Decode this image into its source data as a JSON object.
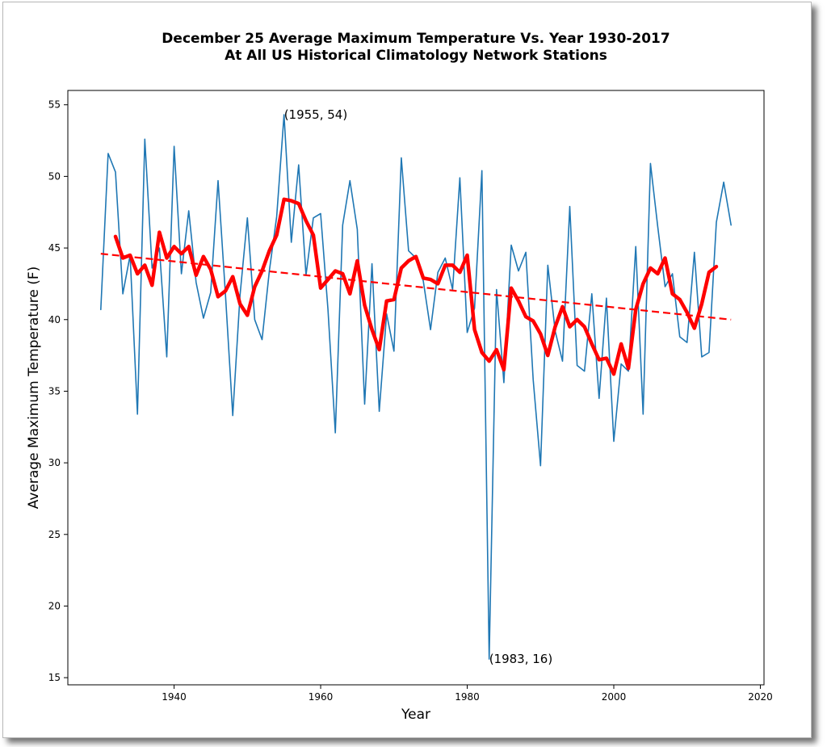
{
  "chart_data": {
    "type": "line",
    "title_line1": "December 25 Average Maximum Temperature Vs. Year 1930-2017",
    "title_line2": "At All US Historical Climatology Network Stations",
    "xlabel": "Year",
    "ylabel": "Average Maximum Temperature (F)",
    "xlim": [
      1925.5,
      2020.5
    ],
    "ylim": [
      14.5,
      56
    ],
    "xticks": [
      1940,
      1960,
      1980,
      2000,
      2020
    ],
    "yticks": [
      15,
      20,
      25,
      30,
      35,
      40,
      45,
      50,
      55
    ],
    "grid": false,
    "series": [
      {
        "style": "thin-line",
        "color": "#1f77b4",
        "x": [
          1930,
          1931,
          1932,
          1933,
          1934,
          1935,
          1936,
          1937,
          1938,
          1939,
          1940,
          1941,
          1942,
          1943,
          1944,
          1945,
          1946,
          1947,
          1948,
          1949,
          1950,
          1951,
          1952,
          1953,
          1954,
          1955,
          1956,
          1957,
          1958,
          1959,
          1960,
          1961,
          1962,
          1963,
          1964,
          1965,
          1966,
          1967,
          1968,
          1969,
          1970,
          1971,
          1972,
          1973,
          1974,
          1975,
          1976,
          1977,
          1978,
          1979,
          1980,
          1981,
          1982,
          1983,
          1984,
          1985,
          1986,
          1987,
          1988,
          1989,
          1990,
          1991,
          1992,
          1993,
          1994,
          1995,
          1996,
          1997,
          1998,
          1999,
          2000,
          2001,
          2002,
          2003,
          2004,
          2005,
          2006,
          2007,
          2008,
          2009,
          2010,
          2011,
          2012,
          2013,
          2014,
          2015,
          2016
        ],
        "y": [
          40.7,
          51.6,
          50.3,
          41.8,
          44.5,
          33.4,
          52.6,
          43.6,
          45.0,
          37.4,
          52.1,
          43.2,
          47.6,
          42.6,
          40.1,
          41.9,
          49.7,
          41.8,
          33.3,
          41.7,
          47.1,
          40.0,
          38.6,
          43.4,
          47.2,
          54.3,
          45.4,
          50.8,
          43.1,
          47.1,
          47.4,
          40.7,
          32.1,
          46.6,
          49.7,
          46.3,
          34.1,
          43.9,
          33.6,
          40.4,
          37.8,
          51.3,
          44.8,
          44.3,
          42.7,
          39.3,
          43.3,
          44.3,
          42.1,
          49.9,
          39.1,
          40.8,
          50.4,
          16.3,
          42.1,
          35.6,
          45.2,
          43.4,
          44.7,
          35.8,
          29.8,
          43.8,
          39.2,
          37.1,
          47.9,
          36.8,
          36.4,
          41.8,
          34.5,
          41.5,
          31.5,
          36.9,
          36.4,
          45.1,
          33.4,
          50.9,
          46.5,
          42.3,
          43.2,
          38.8,
          38.4,
          44.7,
          37.4,
          37.7,
          46.8,
          49.6,
          46.6
        ]
      },
      {
        "style": "thick-moving-average",
        "color": "#ff0000",
        "x": [
          1932,
          1933,
          1934,
          1935,
          1936,
          1937,
          1938,
          1939,
          1940,
          1941,
          1942,
          1943,
          1944,
          1945,
          1946,
          1947,
          1948,
          1949,
          1950,
          1951,
          1952,
          1953,
          1954,
          1955,
          1956,
          1957,
          1958,
          1959,
          1960,
          1961,
          1962,
          1963,
          1964,
          1965,
          1966,
          1967,
          1968,
          1969,
          1970,
          1971,
          1972,
          1973,
          1974,
          1975,
          1976,
          1977,
          1978,
          1979,
          1980,
          1981,
          1982,
          1983,
          1984,
          1985,
          1986,
          1987,
          1988,
          1989,
          1990,
          1991,
          1992,
          1993,
          1994,
          1995,
          1996,
          1997,
          1998,
          1999,
          2000,
          2001,
          2002,
          2003,
          2004,
          2005,
          2006,
          2007,
          2008,
          2009,
          2010,
          2011,
          2012,
          2013,
          2014
        ],
        "y": [
          45.8,
          44.3,
          44.5,
          43.2,
          43.8,
          42.4,
          46.1,
          44.3,
          45.1,
          44.6,
          45.1,
          43.1,
          44.4,
          43.5,
          41.6,
          42.0,
          43.0,
          41.1,
          40.3,
          42.3,
          43.4,
          44.8,
          45.9,
          48.4,
          48.3,
          48.1,
          46.9,
          45.9,
          42.2,
          42.8,
          43.4,
          43.2,
          41.8,
          44.1,
          41.0,
          39.3,
          37.9,
          41.3,
          41.4,
          43.6,
          44.1,
          44.4,
          42.9,
          42.8,
          42.5,
          43.8,
          43.8,
          43.3,
          44.5,
          39.3,
          37.7,
          37.1,
          37.9,
          36.5,
          42.2,
          41.3,
          40.2,
          39.9,
          39.0,
          37.5,
          39.5,
          40.9,
          39.5,
          40.0,
          39.5,
          38.3,
          37.2,
          37.3,
          36.2,
          38.3,
          36.6,
          40.7,
          42.5,
          43.6,
          43.2,
          44.3,
          41.8,
          41.4,
          40.5,
          39.4,
          41.1,
          43.3,
          43.7
        ]
      },
      {
        "style": "dashed-trend",
        "color": "#ff0000",
        "x": [
          1930,
          2016
        ],
        "y": [
          44.6,
          40.0
        ]
      }
    ],
    "annotations": [
      {
        "text": "(1955, 54)",
        "x": 1955,
        "y": 54.3
      },
      {
        "text": "(1983, 16)",
        "x": 1983,
        "y": 16.3
      }
    ]
  }
}
